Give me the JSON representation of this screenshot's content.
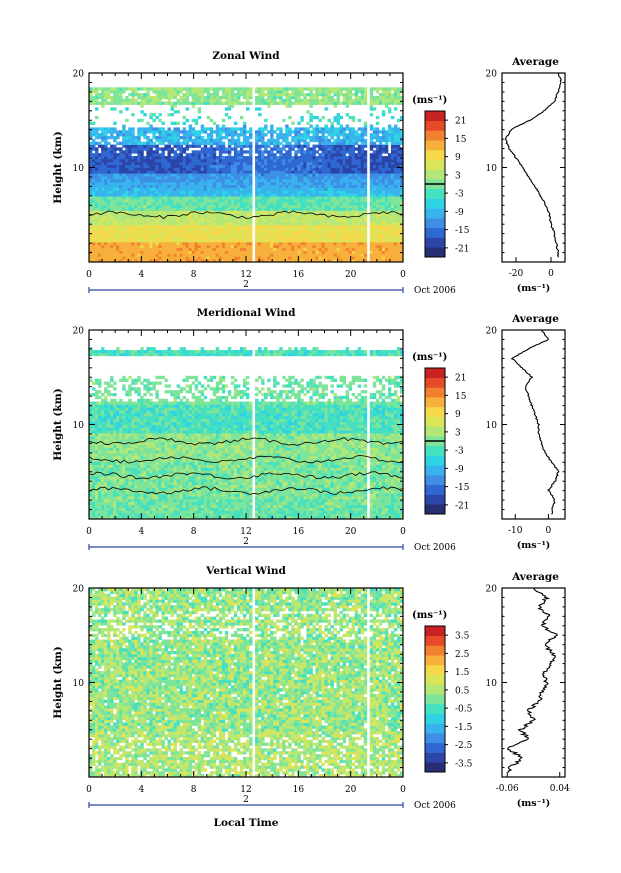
{
  "chart_data": [
    {
      "type": "heatmap",
      "title": "Zonal Wind",
      "ylabel": "Height (km)",
      "ylim": [
        0,
        20
      ],
      "xlim": [
        0,
        24
      ],
      "x_ticks": [
        "0",
        "4",
        "8",
        "12",
        "16",
        "20",
        "0"
      ],
      "y_ticks": [
        "20",
        "10"
      ],
      "date_day": "2",
      "date_label": "Oct 2006",
      "colorbar": {
        "unit": "(ms⁻¹)",
        "ticks": [
          "21",
          "15",
          "9",
          "3",
          "-3",
          "-9",
          "-15",
          "-21"
        ],
        "range": [
          -24,
          24
        ]
      },
      "profile": {
        "title": "Average",
        "xlabel": "(ms⁻¹)",
        "x_ticks": [
          "-20",
          "0"
        ],
        "y_ticks": [
          "20",
          "10"
        ],
        "xlim": [
          -28,
          8
        ],
        "heights": [
          1,
          2,
          3,
          4,
          5,
          6,
          7,
          8,
          9,
          10,
          11,
          12,
          13,
          14,
          15,
          16,
          17,
          18,
          19,
          20
        ],
        "values": [
          4,
          3,
          2,
          0,
          -1,
          -3,
          -6,
          -9,
          -13,
          -16,
          -20,
          -24,
          -26,
          -23,
          -12,
          -4,
          2,
          4,
          6,
          4
        ]
      }
    },
    {
      "type": "heatmap",
      "title": "Meridional Wind",
      "ylabel": "Height (km)",
      "ylim": [
        0,
        20
      ],
      "xlim": [
        0,
        24
      ],
      "x_ticks": [
        "0",
        "4",
        "8",
        "12",
        "16",
        "20",
        "0"
      ],
      "y_ticks": [
        "20",
        "10"
      ],
      "date_day": "2",
      "date_label": "Oct 2006",
      "colorbar": {
        "unit": "(ms⁻¹)",
        "ticks": [
          "21",
          "15",
          "9",
          "3",
          "-3",
          "-9",
          "-15",
          "-21"
        ],
        "range": [
          -24,
          24
        ]
      },
      "profile": {
        "title": "Average",
        "xlabel": "(ms⁻¹)",
        "x_ticks": [
          "-10",
          "0"
        ],
        "y_ticks": [
          "20",
          "10"
        ],
        "xlim": [
          -14,
          5
        ],
        "heights": [
          1,
          2,
          3,
          4,
          5,
          6,
          7,
          8,
          9,
          10,
          11,
          12,
          13,
          14,
          15,
          16,
          17,
          18,
          19,
          20
        ],
        "values": [
          1,
          2,
          0,
          2,
          3,
          1,
          -1,
          -2,
          -3,
          -3,
          -4,
          -5,
          -6,
          -7,
          -5,
          -8,
          -11,
          -6,
          0,
          -2
        ]
      }
    },
    {
      "type": "heatmap",
      "title": "Vertical Wind",
      "ylabel": "Height (km)",
      "xlabel": "Local Time",
      "ylim": [
        0,
        20
      ],
      "xlim": [
        0,
        24
      ],
      "x_ticks": [
        "0",
        "4",
        "8",
        "12",
        "16",
        "20",
        "0"
      ],
      "y_ticks": [
        "20",
        "10"
      ],
      "date_day": "2",
      "date_label": "Oct 2006",
      "colorbar": {
        "unit": "(ms⁻¹)",
        "ticks": [
          "3.5",
          "2.5",
          "1.5",
          "0.5",
          "-0.5",
          "-1.5",
          "-2.5",
          "-3.5"
        ],
        "range": [
          -4,
          4
        ]
      },
      "profile": {
        "title": "Average",
        "xlabel": "(ms⁻¹)",
        "x_ticks": [
          "-0.06",
          "0.04"
        ],
        "y_ticks": [
          "20",
          "10"
        ],
        "xlim": [
          -0.07,
          0.05
        ],
        "heights": [
          1,
          2,
          3,
          4,
          5,
          6,
          7,
          8,
          9,
          10,
          11,
          12,
          13,
          14,
          15,
          16,
          17,
          18,
          19,
          20
        ],
        "values": [
          -0.055,
          -0.03,
          -0.06,
          -0.02,
          -0.035,
          -0.01,
          -0.02,
          0.0,
          0.005,
          0.015,
          0.01,
          0.025,
          0.03,
          0.01,
          0.035,
          0.005,
          0.02,
          0.0,
          0.015,
          -0.01
        ]
      }
    }
  ]
}
